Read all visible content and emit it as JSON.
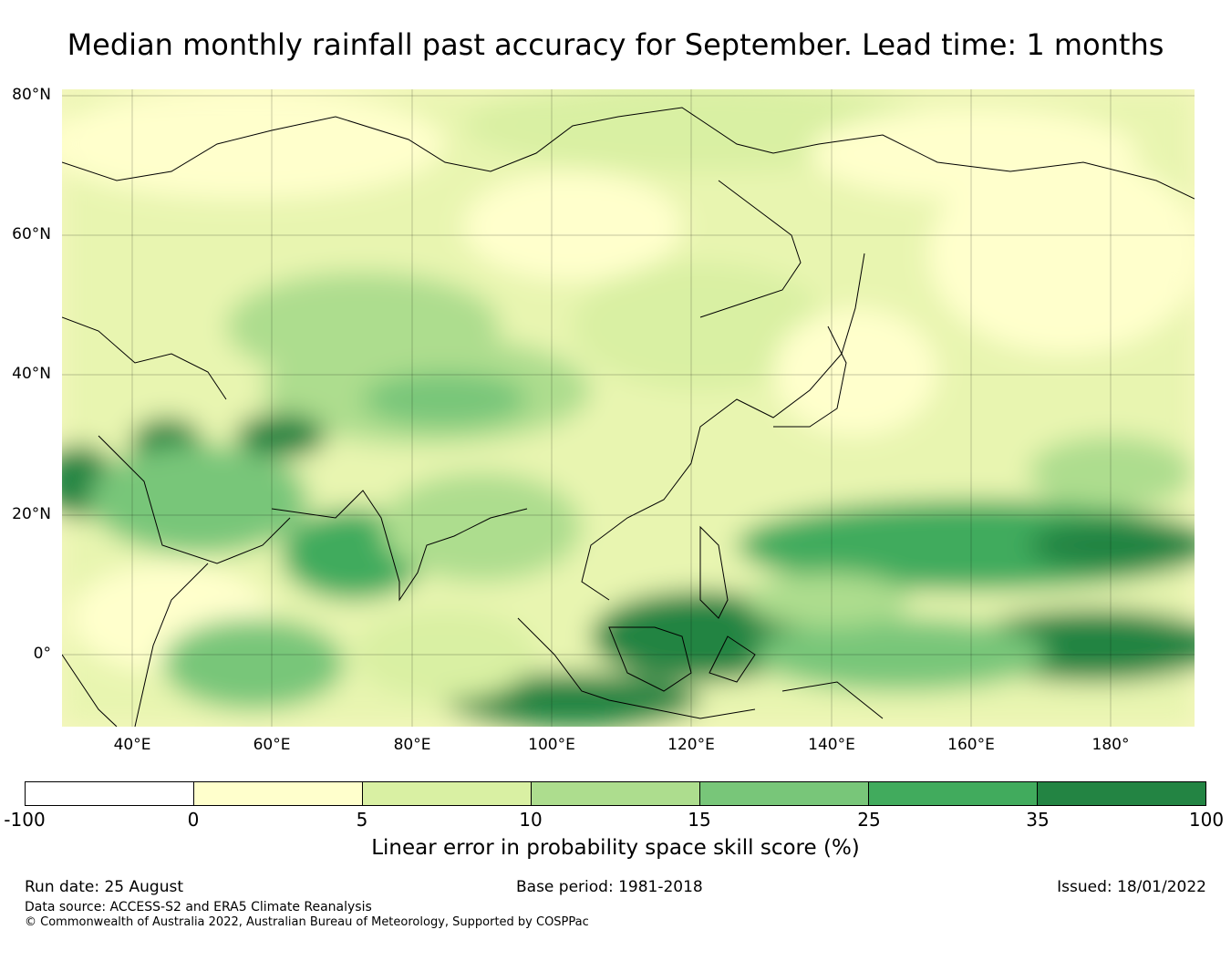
{
  "title": "Median monthly rainfall past accuracy for September. Lead time: 1 months",
  "map": {
    "lat_labels": [
      "80°N",
      "60°N",
      "40°N",
      "20°N",
      "0°"
    ],
    "lon_labels": [
      "40°E",
      "60°E",
      "80°E",
      "100°E",
      "120°E",
      "140°E",
      "160°E",
      "180°"
    ]
  },
  "colorbar": {
    "ticks": [
      "-100",
      "0",
      "5",
      "10",
      "15",
      "25",
      "35",
      "100"
    ],
    "colors": [
      "#ffffff",
      "#ffffcc",
      "#d9f0a3",
      "#addd8e",
      "#78c679",
      "#41ab5d",
      "#238443"
    ],
    "label": "Linear error in probability space skill score (%)"
  },
  "footer": {
    "run_date": "Run date: 25 August",
    "base_period": "Base period: 1981-2018",
    "issued": "Issued: 18/01/2022",
    "data_source": "Data source: ACCESS-S2 and ERA5 Climate Reanalysis",
    "copyright": "© Commonwealth of Australia 2022, Australian Bureau of Meteorology, Supported by COSPPac"
  }
}
